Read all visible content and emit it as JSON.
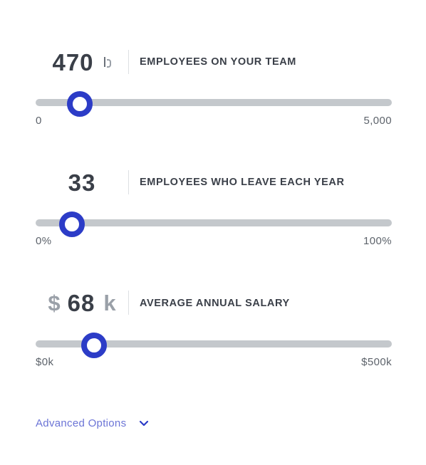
{
  "sliders": [
    {
      "value": "470",
      "prefix": "",
      "suffix": "",
      "label": "EMPLOYEES ON YOUR TEAM",
      "min_label": "0",
      "max_label": "5,000",
      "level_fraction": 0.12
    },
    {
      "value": "33",
      "prefix": "",
      "suffix": "",
      "label": "EMPLOYEES WHO LEAVE EACH YEAR",
      "min_label": "0%",
      "max_label": "100%",
      "level_fraction": 0.1
    },
    {
      "value": "68",
      "prefix": "$",
      "suffix": "k",
      "label": "AVERAGE ANNUAL SALARY",
      "min_label": "$0k",
      "max_label": "$500k",
      "level_fraction": 0.16
    }
  ],
  "advanced_options": {
    "label": "Advanced Options"
  },
  "colors": {
    "accent": "#2c3cc7",
    "track": "#c4c8cc",
    "link": "#6b74d6",
    "text": "#3a3f48"
  },
  "icons": {
    "text_cursor": "text-cursor-icon",
    "expand": "chevron-down-icon"
  }
}
